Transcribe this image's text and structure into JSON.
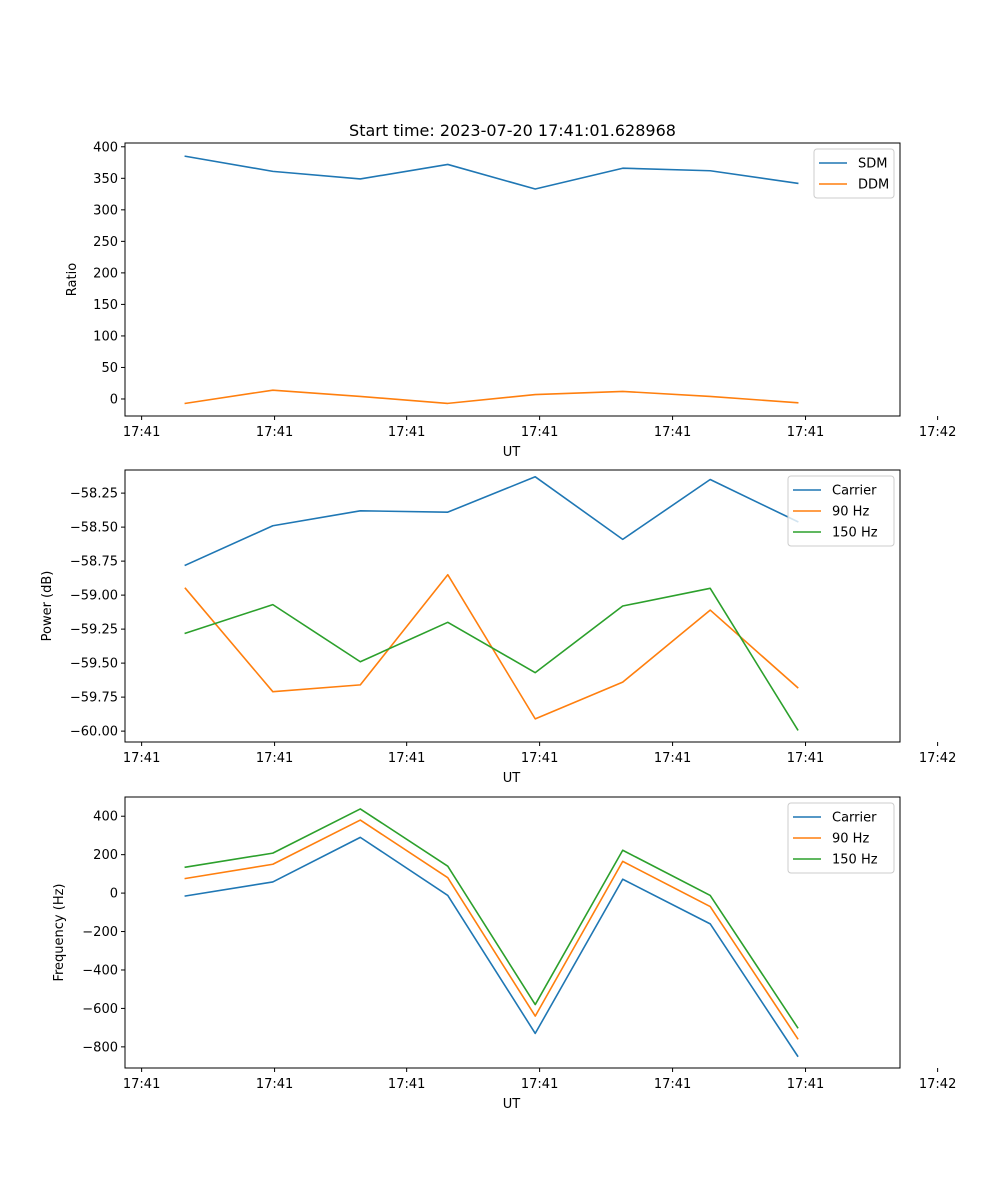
{
  "figure_title": "Start time: 2023-07-20 17:41:01.628968",
  "chart_data": [
    {
      "type": "line",
      "title": "Start time: 2023-07-20 17:41:01.628968",
      "xlabel": "UT",
      "ylabel": "Ratio",
      "x_tick_labels": [
        "17:41",
        "17:41",
        "17:41",
        "17:41",
        "17:41",
        "17:41",
        "17:42"
      ],
      "x": [
        1,
        2,
        3,
        4,
        5,
        6,
        7,
        8
      ],
      "xlim": [
        0.31,
        9.17
      ],
      "x_ticks": [
        0.5,
        2.02,
        3.53,
        5.05,
        6.57,
        8.09,
        9.6
      ],
      "ylim": [
        -27,
        406
      ],
      "y_ticks": [
        0,
        50,
        100,
        150,
        200,
        250,
        300,
        350,
        400
      ],
      "y_tick_labels": [
        "0",
        "50",
        "100",
        "150",
        "200",
        "250",
        "300",
        "350",
        "400"
      ],
      "legend_position": "top-right",
      "series": [
        {
          "name": "SDM",
          "color": "#1f77b4",
          "values": [
            385,
            361,
            349,
            372,
            333,
            366,
            362,
            342
          ]
        },
        {
          "name": "DDM",
          "color": "#ff7f0e",
          "values": [
            -7,
            14,
            4,
            -7,
            7,
            12,
            4,
            -6
          ]
        }
      ]
    },
    {
      "type": "line",
      "title": "",
      "xlabel": "UT",
      "ylabel": "Power (dB)",
      "x_tick_labels": [
        "17:41",
        "17:41",
        "17:41",
        "17:41",
        "17:41",
        "17:41",
        "17:42"
      ],
      "x": [
        1,
        2,
        3,
        4,
        5,
        6,
        7,
        8
      ],
      "xlim": [
        0.31,
        9.17
      ],
      "x_ticks": [
        0.5,
        2.02,
        3.53,
        5.05,
        6.57,
        8.09,
        9.6
      ],
      "ylim": [
        -60.08,
        -58.08
      ],
      "y_ticks": [
        -58.25,
        -58.5,
        -58.75,
        -59.0,
        -59.25,
        -59.5,
        -59.75,
        -60.0
      ],
      "y_tick_labels": [
        "−58.25",
        "−58.50",
        "−58.75",
        "−59.00",
        "−59.25",
        "−59.50",
        "−59.75",
        "−60.00"
      ],
      "legend_position": "top-right",
      "series": [
        {
          "name": "Carrier",
          "color": "#1f77b4",
          "values": [
            -58.78,
            -58.49,
            -58.38,
            -58.39,
            -58.13,
            -58.59,
            -58.15,
            -58.46
          ]
        },
        {
          "name": "90 Hz",
          "color": "#ff7f0e",
          "values": [
            -58.95,
            -59.71,
            -59.66,
            -58.85,
            -59.91,
            -59.64,
            -59.11,
            -59.68
          ]
        },
        {
          "name": "150 Hz",
          "color": "#2ca02c",
          "values": [
            -59.28,
            -59.07,
            -59.49,
            -59.2,
            -59.57,
            -59.08,
            -58.95,
            -59.99
          ]
        }
      ]
    },
    {
      "type": "line",
      "title": "",
      "xlabel": "UT",
      "ylabel": "Frequency (Hz)",
      "x_tick_labels": [
        "17:41",
        "17:41",
        "17:41",
        "17:41",
        "17:41",
        "17:41",
        "17:42"
      ],
      "x": [
        1,
        2,
        3,
        4,
        5,
        6,
        7,
        8
      ],
      "xlim": [
        0.31,
        9.17
      ],
      "x_ticks": [
        0.5,
        2.02,
        3.53,
        5.05,
        6.57,
        8.09,
        9.6
      ],
      "ylim": [
        -910,
        500
      ],
      "y_ticks": [
        400,
        200,
        0,
        -200,
        -400,
        -600,
        -800
      ],
      "y_tick_labels": [
        "400",
        "200",
        "0",
        "−200",
        "−400",
        "−600",
        "−800"
      ],
      "legend_position": "top-right",
      "series": [
        {
          "name": "Carrier",
          "color": "#1f77b4",
          "values": [
            -15,
            58,
            290,
            -12,
            -730,
            72,
            -160,
            -848
          ]
        },
        {
          "name": "90 Hz",
          "color": "#ff7f0e",
          "values": [
            76,
            150,
            380,
            80,
            -640,
            165,
            -70,
            -757
          ]
        },
        {
          "name": "150 Hz",
          "color": "#2ca02c",
          "values": [
            135,
            208,
            438,
            140,
            -580,
            223,
            -12,
            -700
          ]
        }
      ]
    }
  ]
}
